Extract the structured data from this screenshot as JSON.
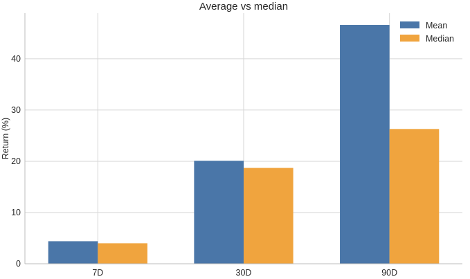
{
  "chart_data": {
    "type": "bar",
    "title": "Average vs median",
    "xlabel": "",
    "ylabel": "Return (%)",
    "categories": [
      "7D",
      "30D",
      "90D"
    ],
    "series": [
      {
        "name": "Mean",
        "values": [
          4.4,
          20.1,
          46.6
        ],
        "color": "#4a76a8"
      },
      {
        "name": "Median",
        "values": [
          4.0,
          18.7,
          26.3
        ],
        "color": "#f0a43e"
      }
    ],
    "ylim": [
      0,
      48.9
    ],
    "yticks": [
      0,
      10,
      20,
      30,
      40
    ],
    "grid": true,
    "legend_position": "top-right"
  }
}
